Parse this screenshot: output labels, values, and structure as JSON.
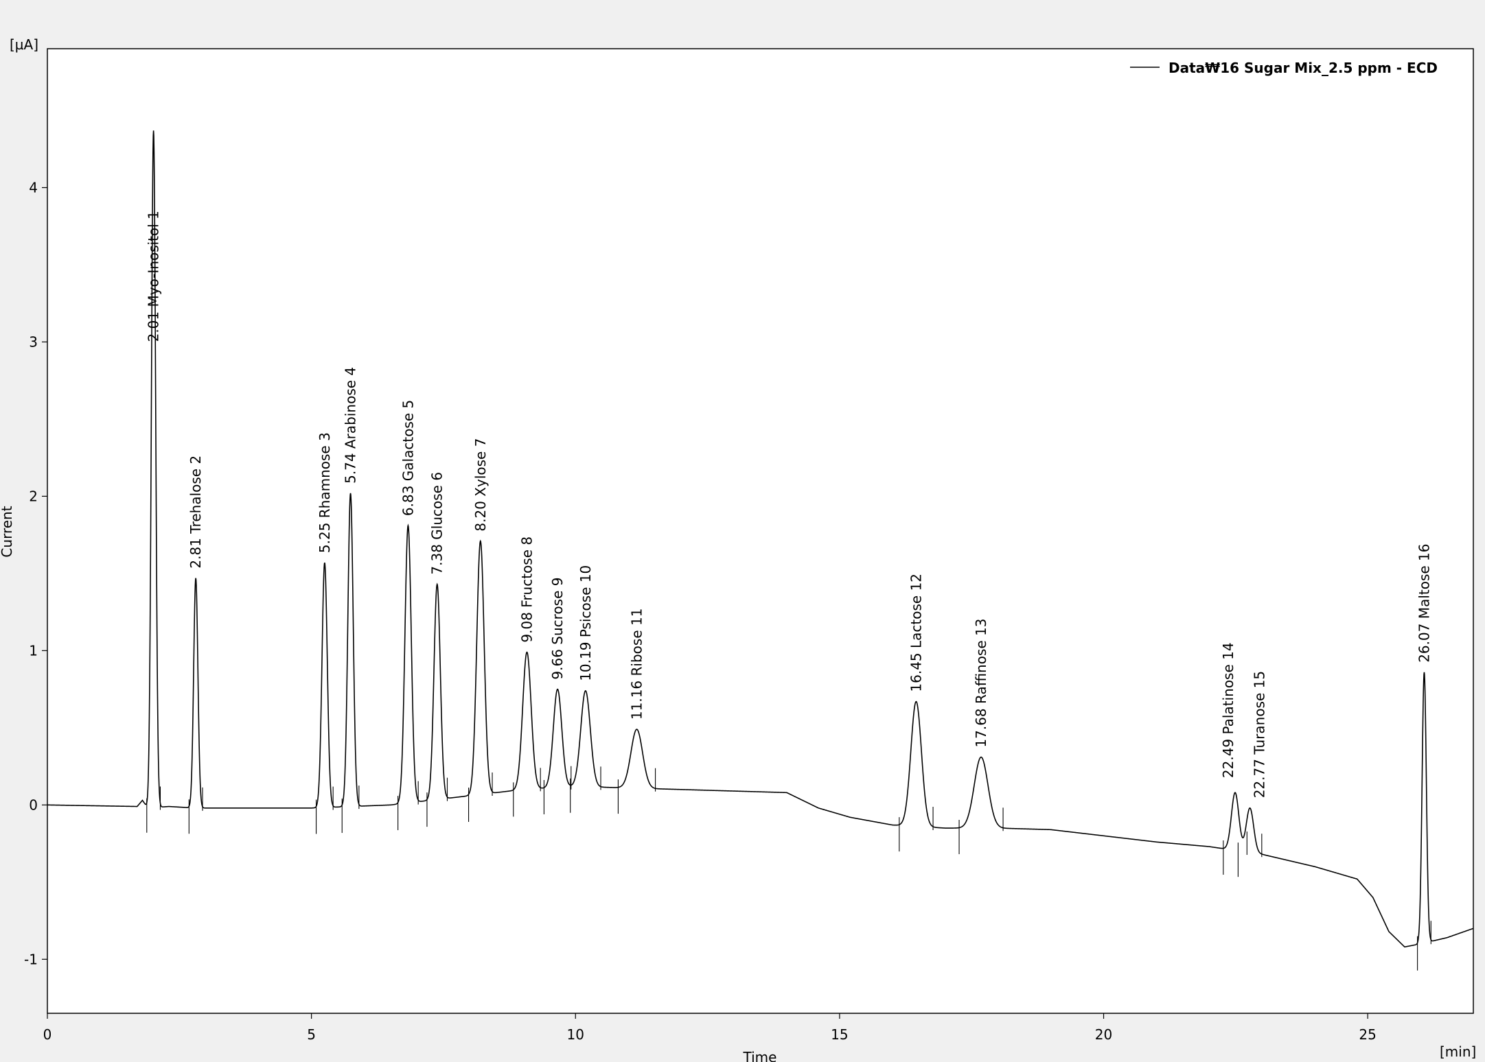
{
  "chart_data": {
    "type": "line",
    "xlabel": "Time",
    "ylabel": "Current",
    "x_unit": "[min]",
    "y_unit": "[µA]",
    "xlim": [
      0,
      27
    ],
    "ylim": [
      -1.35,
      4.9
    ],
    "x_ticks": [
      0,
      5,
      10,
      15,
      20,
      25
    ],
    "y_ticks": [
      -1,
      0,
      1,
      2,
      3,
      4
    ],
    "grid": false,
    "legend": {
      "position": "top-right",
      "entries": [
        "Data₩16 Sugar Mix_2.5 ppm - ECD"
      ]
    },
    "series": [
      {
        "name": "Data₩16 Sugar Mix_2.5 ppm - ECD",
        "baseline": [
          [
            0,
            0.0
          ],
          [
            1.7,
            -0.01
          ],
          [
            1.8,
            0.03
          ],
          [
            1.9,
            -0.02
          ],
          [
            2.3,
            -0.01
          ],
          [
            2.8,
            -0.02
          ],
          [
            3.5,
            -0.02
          ],
          [
            5.0,
            -0.02
          ],
          [
            6.5,
            0.0
          ],
          [
            8.0,
            0.06
          ],
          [
            9.0,
            0.1
          ],
          [
            10.0,
            0.12
          ],
          [
            12.0,
            0.1
          ],
          [
            13.0,
            0.09
          ],
          [
            14.0,
            0.08
          ],
          [
            14.6,
            -0.02
          ],
          [
            15.2,
            -0.08
          ],
          [
            16.0,
            -0.13
          ],
          [
            17.0,
            -0.15
          ],
          [
            18.0,
            -0.15
          ],
          [
            19.0,
            -0.16
          ],
          [
            20.0,
            -0.2
          ],
          [
            21.0,
            -0.24
          ],
          [
            22.0,
            -0.27
          ],
          [
            23.0,
            -0.32
          ],
          [
            24.0,
            -0.4
          ],
          [
            24.8,
            -0.48
          ],
          [
            25.1,
            -0.6
          ],
          [
            25.4,
            -0.82
          ],
          [
            25.7,
            -0.92
          ],
          [
            26.0,
            -0.9
          ],
          [
            26.5,
            -0.86
          ],
          [
            27.0,
            -0.8
          ]
        ],
        "peaks": [
          {
            "rt": 2.01,
            "height": 4.37,
            "width": 0.04
          },
          {
            "rt": 2.81,
            "height": 1.47,
            "width": 0.04
          },
          {
            "rt": 5.25,
            "height": 1.57,
            "width": 0.05
          },
          {
            "rt": 5.74,
            "height": 2.02,
            "width": 0.05
          },
          {
            "rt": 6.83,
            "height": 1.81,
            "width": 0.06
          },
          {
            "rt": 7.38,
            "height": 1.43,
            "width": 0.06
          },
          {
            "rt": 8.2,
            "height": 1.71,
            "width": 0.07
          },
          {
            "rt": 9.08,
            "height": 0.99,
            "width": 0.08
          },
          {
            "rt": 9.66,
            "height": 0.75,
            "width": 0.08
          },
          {
            "rt": 10.19,
            "height": 0.74,
            "width": 0.09
          },
          {
            "rt": 11.16,
            "height": 0.49,
            "width": 0.11
          },
          {
            "rt": 16.45,
            "height": 0.67,
            "width": 0.1
          },
          {
            "rt": 17.68,
            "height": 0.31,
            "width": 0.13
          },
          {
            "rt": 22.49,
            "height": 0.08,
            "width": 0.07
          },
          {
            "rt": 22.77,
            "height": -0.02,
            "width": 0.07
          },
          {
            "rt": 26.07,
            "height": 0.86,
            "width": 0.04
          }
        ]
      }
    ],
    "peak_labels": [
      {
        "rt": 2.01,
        "text": "2.01 Myo-Inositol   1"
      },
      {
        "rt": 2.81,
        "text": "2.81 Trehalose   2"
      },
      {
        "rt": 5.25,
        "text": "5.25 Rhamnose   3"
      },
      {
        "rt": 5.74,
        "text": "5.74 Arabinose   4"
      },
      {
        "rt": 6.83,
        "text": "6.83 Galactose   5"
      },
      {
        "rt": 7.38,
        "text": "7.38 Glucose   6"
      },
      {
        "rt": 8.2,
        "text": "8.20 Xylose   7"
      },
      {
        "rt": 9.08,
        "text": "9.08 Fructose   8"
      },
      {
        "rt": 9.66,
        "text": "9.66 Sucrose   9"
      },
      {
        "rt": 10.19,
        "text": "10.19 Psicose   10"
      },
      {
        "rt": 11.16,
        "text": "11.16 Ribose   11"
      },
      {
        "rt": 16.45,
        "text": "16.45 Lactose   12"
      },
      {
        "rt": 17.68,
        "text": "17.68 Raffinose   13"
      },
      {
        "rt": 22.49,
        "text": "22.49 Palatinose   14"
      },
      {
        "rt": 22.77,
        "text": "22.77 Turanose   15"
      },
      {
        "rt": 26.07,
        "text": "26.07 Maltose   16"
      }
    ]
  }
}
